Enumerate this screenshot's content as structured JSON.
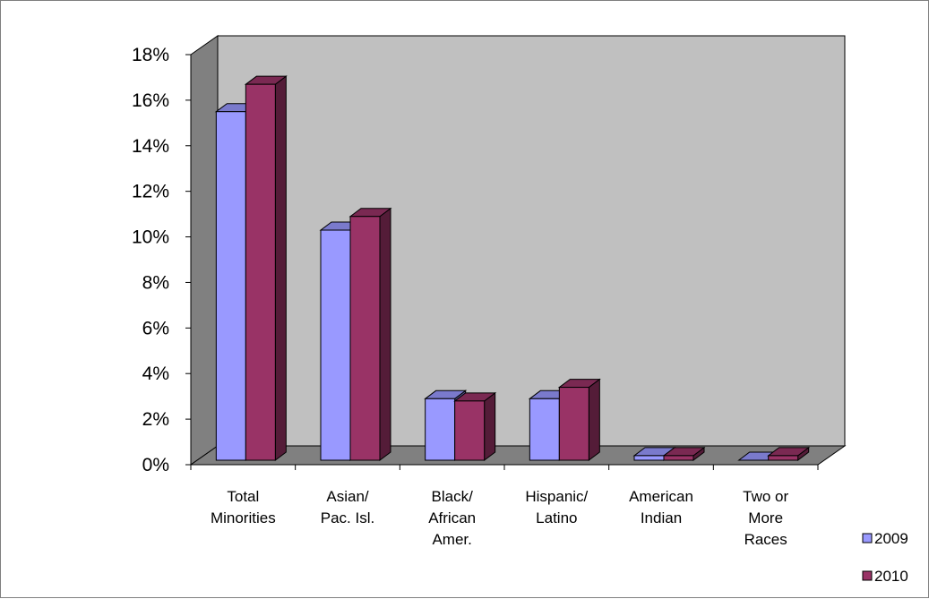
{
  "chart_data": {
    "type": "bar",
    "style": "3d-clustered-column",
    "categories": [
      [
        "Total",
        "Minorities"
      ],
      [
        "Asian/",
        "Pac. Isl."
      ],
      [
        "Black/",
        "African",
        "Amer."
      ],
      [
        "Hispanic/",
        "Latino"
      ],
      [
        "American",
        "Indian"
      ],
      [
        "Two or",
        "More",
        "Races"
      ]
    ],
    "series": [
      {
        "name": "2009",
        "values": [
          15.3,
          10.1,
          2.7,
          2.7,
          0.2,
          0
        ],
        "color": "#9999ff"
      },
      {
        "name": "2010",
        "values": [
          16.5,
          10.7,
          2.6,
          3.2,
          0.2,
          0.2
        ],
        "color": "#993366"
      }
    ],
    "ylim": [
      0,
      18
    ],
    "yticks": [
      "0%",
      "2%",
      "4%",
      "6%",
      "8%",
      "10%",
      "12%",
      "14%",
      "16%",
      "18%"
    ],
    "grid": false,
    "legend_position": "bottom-right",
    "back_wall_color": "#c0c0c0",
    "floor_color": "#808080"
  }
}
